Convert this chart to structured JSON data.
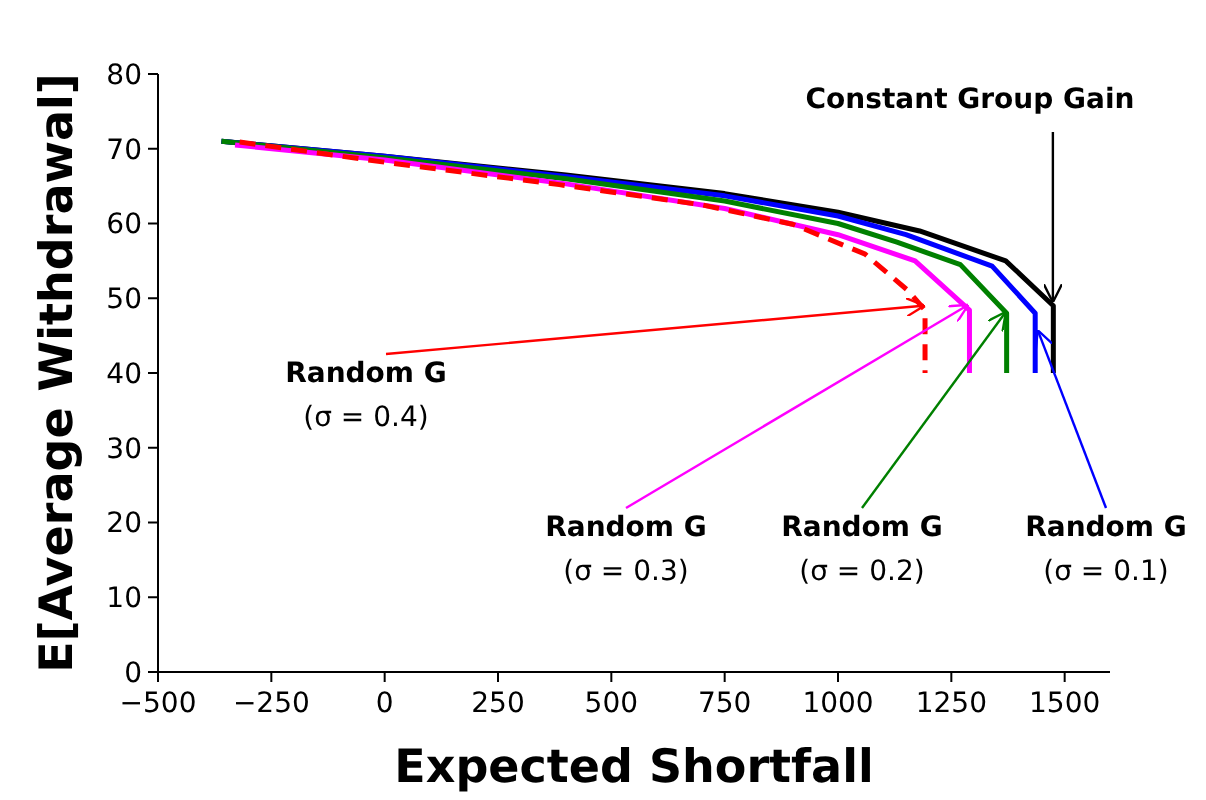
{
  "chart_data": {
    "type": "line",
    "xlabel": "Expected Shortfall",
    "ylabel": "E[Average Withdrawal]",
    "xlim": [
      -500,
      1600
    ],
    "ylim": [
      0,
      80
    ],
    "xticks": [
      -500,
      -250,
      0,
      250,
      500,
      750,
      1000,
      1250,
      1500
    ],
    "yticks": [
      0,
      10,
      20,
      30,
      40,
      50,
      60,
      70,
      80
    ],
    "grid": false,
    "marker": "none",
    "series": [
      {
        "color": "#000000",
        "line_style": "solid",
        "x": [
          -360,
          0,
          400,
          750,
          1000,
          1180,
          1370,
          1475,
          1475
        ],
        "values": [
          71,
          69,
          66.5,
          64,
          61.5,
          59,
          55,
          49,
          40
        ]
      },
      {
        "color": "#0000ff",
        "line_style": "solid",
        "x": [
          -360,
          0,
          400,
          750,
          1000,
          1150,
          1340,
          1435,
          1435
        ],
        "values": [
          71,
          69,
          66.3,
          63.7,
          61,
          58.5,
          54.3,
          48,
          40
        ]
      },
      {
        "color": "#008000",
        "line_style": "solid",
        "x": [
          -360,
          0,
          400,
          750,
          1000,
          1130,
          1270,
          1372,
          1372
        ],
        "values": [
          71,
          68.8,
          66,
          63,
          60,
          57.5,
          54.5,
          48,
          40
        ]
      },
      {
        "color": "#ff00ff",
        "line_style": "solid",
        "x": [
          -330,
          0,
          400,
          750,
          1000,
          1170,
          1290,
          1290
        ],
        "values": [
          70.5,
          68.5,
          65.3,
          62,
          58.5,
          55,
          48.4,
          40
        ]
      },
      {
        "color": "#ff0000",
        "line_style": "dashed",
        "x": [
          -320,
          0,
          385,
          700,
          900,
          1060,
          1155,
          1192,
          1192
        ],
        "values": [
          70.9,
          68.2,
          65.2,
          62.5,
          59.9,
          55.9,
          51,
          48.4,
          40
        ]
      }
    ],
    "annotations": [
      {
        "text": "Constant Group Gain",
        "x": 1474,
        "y": 49.7
      },
      {
        "text": "Random G\n(σ = 0.1)",
        "x": 1442,
        "y": 45.5
      },
      {
        "text": "Random G\n(σ = 0.2)",
        "x": 1368,
        "y": 48
      },
      {
        "text": "Random G\n(σ = 0.3)",
        "x": 1284,
        "y": 49
      },
      {
        "text": "Random G\n(σ = 0.4)",
        "x": 1187,
        "y": 49
      }
    ]
  }
}
